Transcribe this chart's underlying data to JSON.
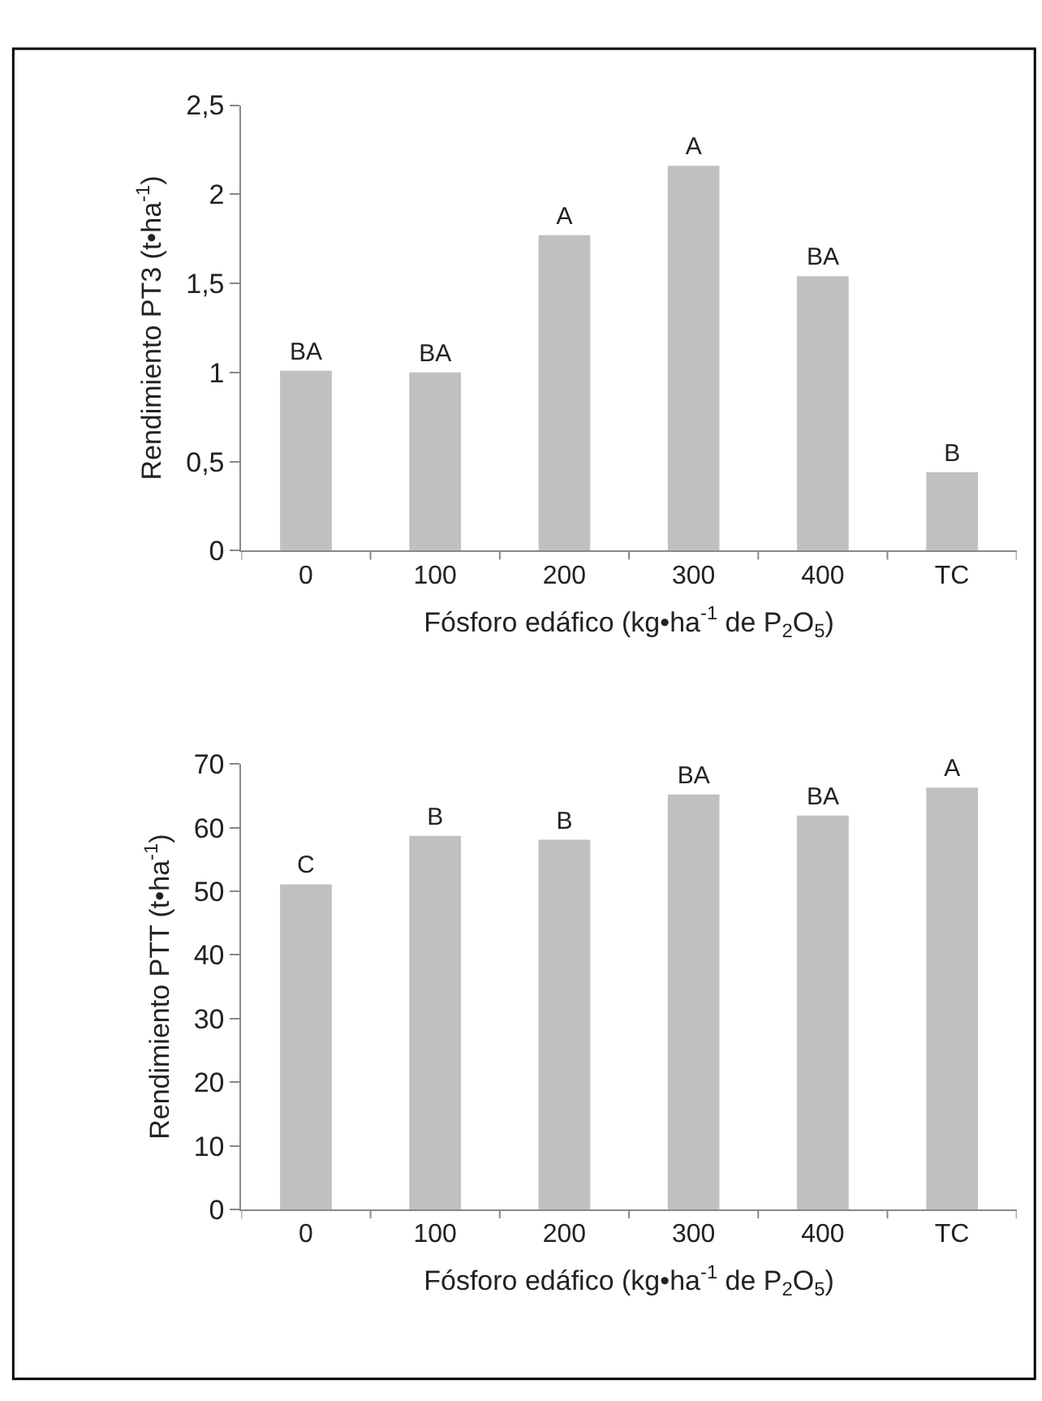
{
  "chart_data": [
    {
      "type": "bar",
      "categories": [
        "0",
        "100",
        "200",
        "300",
        "400",
        "TC"
      ],
      "values": [
        1.01,
        1.0,
        1.77,
        2.16,
        1.54,
        0.44
      ],
      "value_labels": [
        "BA",
        "BA",
        "A",
        "A",
        "BA",
        "B"
      ],
      "color": "#c0c0c0",
      "ylabel": "Rendimiento PT3 (t•ha$^{-1}$)",
      "xlabel": "Fósforo edáfico (kg•ha$^{-1}$ de P$_{2}$O$_{5}$)",
      "ylim": [
        0,
        2.5
      ],
      "yticks": [
        0,
        {
          "value": 0.5,
          "label": "0,5"
        },
        1,
        {
          "value": 1.5,
          "label": "1,5"
        },
        2,
        {
          "value": 2.5,
          "label": "2,5"
        }
      ]
    },
    {
      "type": "bar",
      "categories": [
        "0",
        "100",
        "200",
        "300",
        "400",
        "TC"
      ],
      "values": [
        51.1,
        58.7,
        58.1,
        65.2,
        61.9,
        66.3
      ],
      "value_labels": [
        "C",
        "B",
        "B",
        "BA",
        "BA",
        "A"
      ],
      "color": "#c0c0c0",
      "ylabel": "Rendimiento PTT (t•ha$^{-1}$)",
      "xlabel": "Fósforo edáfico (kg•ha$^{-1}$ de P$_{2}$O$_{5}$)",
      "ylim": [
        0,
        70
      ],
      "yticks": [
        0,
        10,
        20,
        30,
        40,
        50,
        60,
        70
      ]
    }
  ]
}
